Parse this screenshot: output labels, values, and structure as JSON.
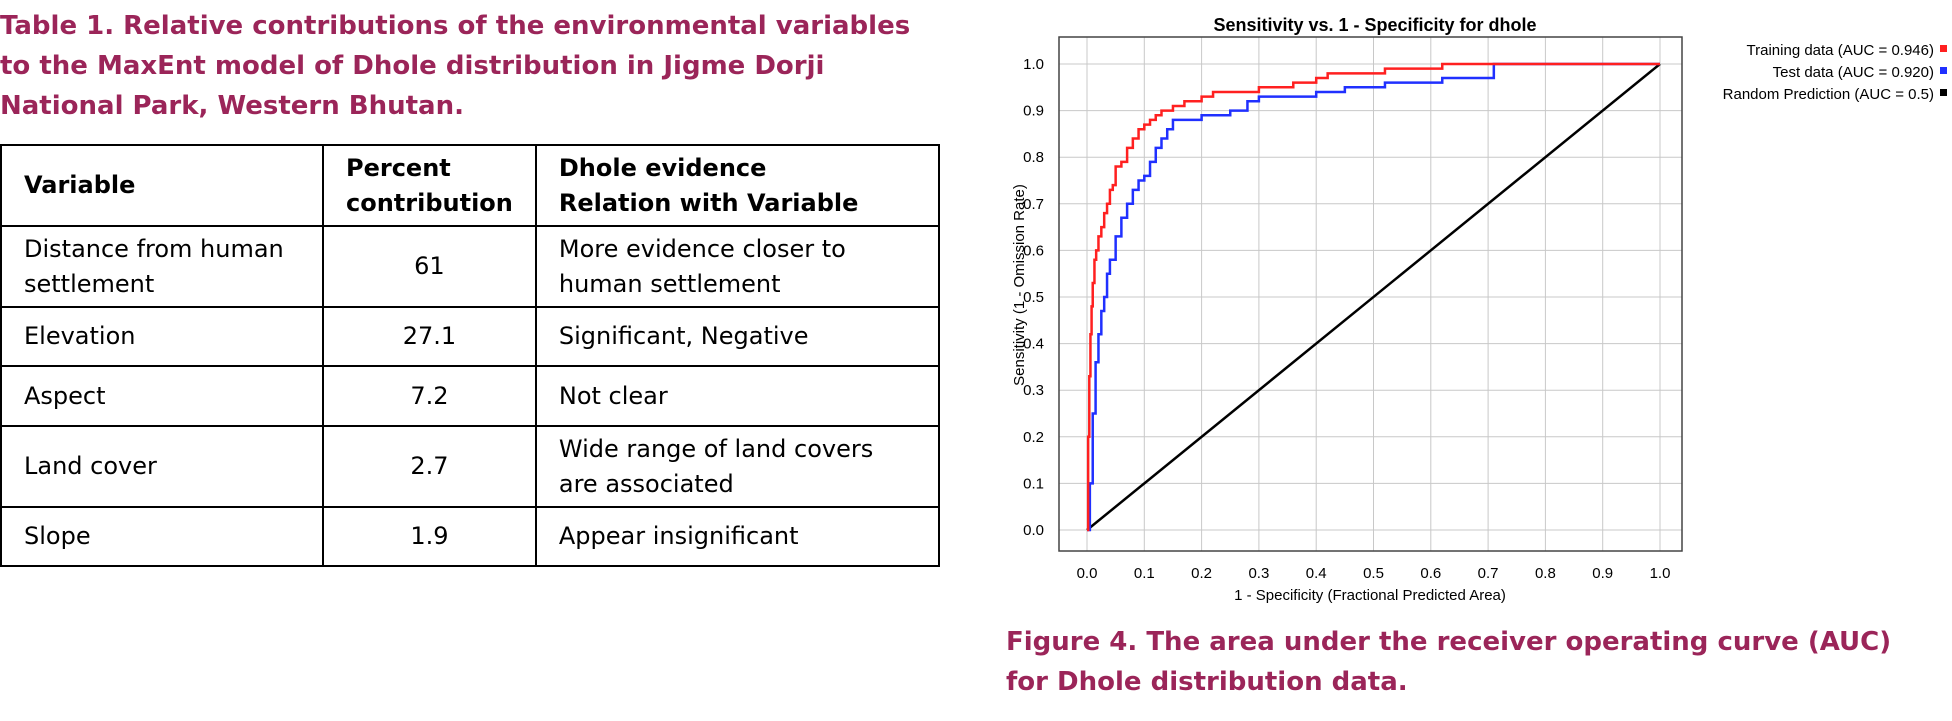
{
  "table": {
    "caption": "Table 1.  Relative contributions of the environmental variables to the MaxEnt model of Dhole distribution in Jigme Dorji National Park, Western Bhutan.",
    "headers": {
      "variable": "Variable",
      "percent": [
        "Percent",
        "contribution"
      ],
      "relation": [
        "Dhole evidence",
        "Relation with Variable"
      ]
    },
    "rows": [
      {
        "variable": "Distance from human settlement",
        "percent": "61",
        "relation": "More evidence closer to human settlement"
      },
      {
        "variable": "Elevation",
        "percent": "27.1",
        "relation": "Significant, Negative"
      },
      {
        "variable": "Aspect",
        "percent": "7.2",
        "relation": "Not clear"
      },
      {
        "variable": "Land cover",
        "percent": "2.7",
        "relation": "Wide range of land covers are associated"
      },
      {
        "variable": "Slope",
        "percent": "1.9",
        "relation": "Appear insignificant"
      }
    ]
  },
  "figure": {
    "caption": "Figure 4. The area under the receiver operating curve (AUC) for Dhole distribution data."
  },
  "chart_data": {
    "type": "line",
    "title": "Sensitivity vs. 1 - Specificity for dhole",
    "xlabel": "1 - Specificity  (Fractional Predicted Area)",
    "ylabel": "Sensitivity  (1 - Omission Rate)",
    "xlim": [
      0,
      1
    ],
    "ylim": [
      0,
      1
    ],
    "xticks": [
      "0.0",
      "0.1",
      "0.2",
      "0.3",
      "0.4",
      "0.5",
      "0.6",
      "0.7",
      "0.8",
      "0.9",
      "1.0"
    ],
    "yticks": [
      "0.0",
      "0.1",
      "0.2",
      "0.3",
      "0.4",
      "0.5",
      "0.6",
      "0.7",
      "0.8",
      "0.9",
      "1.0"
    ],
    "grid": true,
    "legend_position": "top-right",
    "series": [
      {
        "name": "Training data (AUC = 0.946)",
        "color": "#ff2020",
        "x": [
          0,
          0.002,
          0.004,
          0.006,
          0.008,
          0.01,
          0.013,
          0.016,
          0.02,
          0.025,
          0.03,
          0.035,
          0.04,
          0.045,
          0.05,
          0.06,
          0.07,
          0.08,
          0.09,
          0.1,
          0.11,
          0.12,
          0.13,
          0.14,
          0.15,
          0.17,
          0.2,
          0.22,
          0.25,
          0.28,
          0.3,
          0.34,
          0.36,
          0.38,
          0.4,
          0.42,
          0.46,
          0.5,
          0.52,
          0.6,
          0.62,
          0.7,
          0.72,
          0.8,
          1.0
        ],
        "y": [
          0,
          0.2,
          0.33,
          0.42,
          0.48,
          0.53,
          0.58,
          0.6,
          0.63,
          0.65,
          0.68,
          0.7,
          0.73,
          0.74,
          0.78,
          0.79,
          0.82,
          0.84,
          0.86,
          0.87,
          0.88,
          0.89,
          0.9,
          0.9,
          0.91,
          0.92,
          0.93,
          0.94,
          0.94,
          0.94,
          0.95,
          0.95,
          0.96,
          0.96,
          0.97,
          0.98,
          0.98,
          0.98,
          0.99,
          0.99,
          1.0,
          1.0,
          1.0,
          1.0,
          1.0
        ]
      },
      {
        "name": "Test data (AUC = 0.920)",
        "color": "#2030ff",
        "x": [
          0,
          0.005,
          0.01,
          0.015,
          0.02,
          0.025,
          0.03,
          0.035,
          0.04,
          0.05,
          0.06,
          0.07,
          0.08,
          0.09,
          0.1,
          0.11,
          0.12,
          0.13,
          0.14,
          0.15,
          0.17,
          0.2,
          0.22,
          0.25,
          0.28,
          0.3,
          0.35,
          0.4,
          0.45,
          0.5,
          0.52,
          0.6,
          0.62,
          0.7,
          0.71,
          0.8,
          1.0
        ],
        "y": [
          0,
          0.1,
          0.25,
          0.36,
          0.42,
          0.47,
          0.5,
          0.55,
          0.58,
          0.63,
          0.67,
          0.7,
          0.73,
          0.75,
          0.76,
          0.79,
          0.82,
          0.84,
          0.86,
          0.88,
          0.88,
          0.89,
          0.89,
          0.9,
          0.92,
          0.93,
          0.93,
          0.94,
          0.95,
          0.95,
          0.96,
          0.96,
          0.97,
          0.97,
          1.0,
          1.0,
          1.0
        ]
      },
      {
        "name": "Random Prediction (AUC = 0.5)",
        "color": "#000000",
        "x": [
          0,
          1
        ],
        "y": [
          0,
          1
        ]
      }
    ]
  }
}
